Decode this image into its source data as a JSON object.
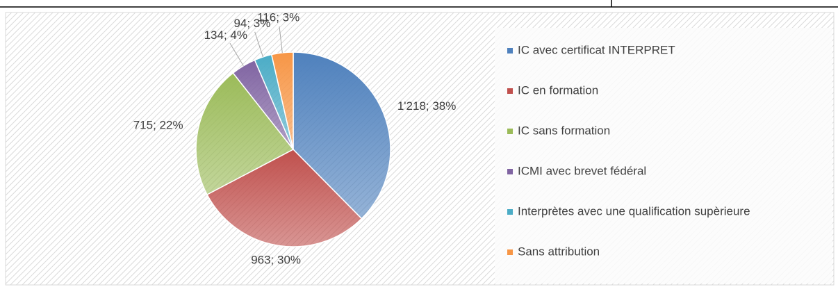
{
  "chart_data": {
    "type": "pie",
    "categories": [
      "IC avec certificat INTERPRET",
      "IC en formation",
      "IC sans formation",
      "ICMI avec brevet fédéral",
      "Interprètes avec une qualification supèrieure",
      "Sans attribution"
    ],
    "values": [
      1218,
      963,
      715,
      134,
      94,
      116
    ],
    "value_labels": [
      "1'218; 38%",
      "963; 30%",
      "715; 22%",
      "134; 4%",
      "94; 3%",
      "116; 3%"
    ],
    "colors": [
      "#4f81bd",
      "#c0504d",
      "#9bbb59",
      "#8064a2",
      "#4bacc6",
      "#f79646"
    ],
    "legend": "right"
  }
}
